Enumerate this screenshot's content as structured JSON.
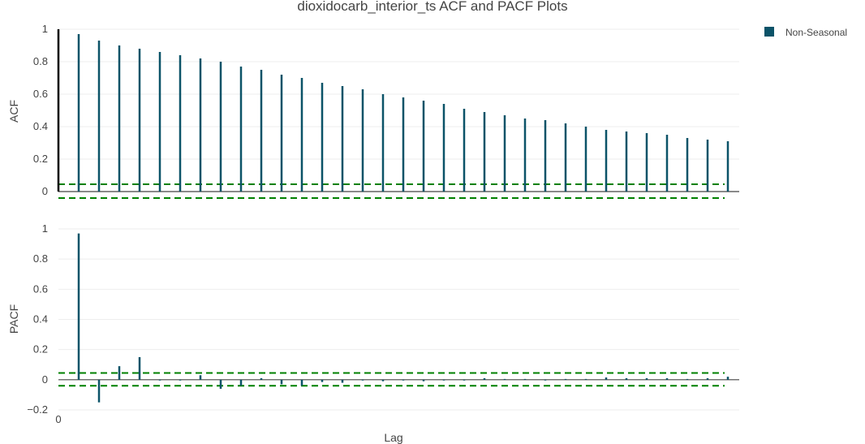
{
  "chart_data": {
    "type": "bar",
    "title": "dioxidocarb_interior_ts ACF and PACF Plots",
    "xlabel": "Lag",
    "x_tick_labels": [
      "0"
    ],
    "legend": {
      "position": "top-right",
      "entries": [
        {
          "name": "Non-Seasonal",
          "color": "#0b5368"
        }
      ]
    },
    "colors": {
      "bar": "#0b5368",
      "lag0": "#000000",
      "confidence": "#008000",
      "grid": "#eeeeee",
      "zero_line": "#444444",
      "text": "#444444"
    },
    "lags": [
      0,
      1,
      2,
      3,
      4,
      5,
      6,
      7,
      8,
      9,
      10,
      11,
      12,
      13,
      14,
      15,
      16,
      17,
      18,
      19,
      20,
      21,
      22,
      23,
      24,
      25,
      26,
      27,
      28,
      29,
      30,
      31,
      32,
      33
    ],
    "acf": {
      "ylabel": "ACF",
      "ylim": [
        0,
        1
      ],
      "yticks": [
        0,
        0.2,
        0.4,
        0.6,
        0.8,
        1
      ],
      "ytick_labels": [
        "0",
        "0.2",
        "0.4",
        "0.6",
        "0.8",
        "1"
      ],
      "values": [
        1.0,
        0.97,
        0.93,
        0.9,
        0.88,
        0.86,
        0.84,
        0.82,
        0.8,
        0.77,
        0.75,
        0.72,
        0.7,
        0.67,
        0.65,
        0.63,
        0.6,
        0.58,
        0.56,
        0.54,
        0.51,
        0.49,
        0.47,
        0.45,
        0.44,
        0.42,
        0.4,
        0.38,
        0.37,
        0.36,
        0.35,
        0.33,
        0.32,
        0.31
      ],
      "confidence": {
        "upper": 0.045,
        "lower": -0.04
      }
    },
    "pacf": {
      "ylabel": "PACF",
      "ylim": [
        -0.2,
        1
      ],
      "yticks": [
        -0.2,
        0,
        0.2,
        0.4,
        0.6,
        0.8,
        1
      ],
      "ytick_labels": [
        "−0.2",
        "0",
        "0.2",
        "0.4",
        "0.6",
        "0.8",
        "1"
      ],
      "values": [
        0,
        0.97,
        -0.15,
        0.09,
        0.15,
        -0.005,
        -0.005,
        0.03,
        -0.06,
        -0.04,
        0.01,
        -0.03,
        -0.04,
        -0.015,
        -0.02,
        -0.005,
        -0.01,
        -0.005,
        -0.01,
        -0.005,
        -0.005,
        0.01,
        0.005,
        0.005,
        -0.005,
        0.005,
        0.005,
        0.015,
        0.01,
        0.01,
        0.01,
        0.005,
        0.01,
        0.02
      ],
      "confidence": {
        "upper": 0.045,
        "lower": -0.04
      }
    }
  }
}
